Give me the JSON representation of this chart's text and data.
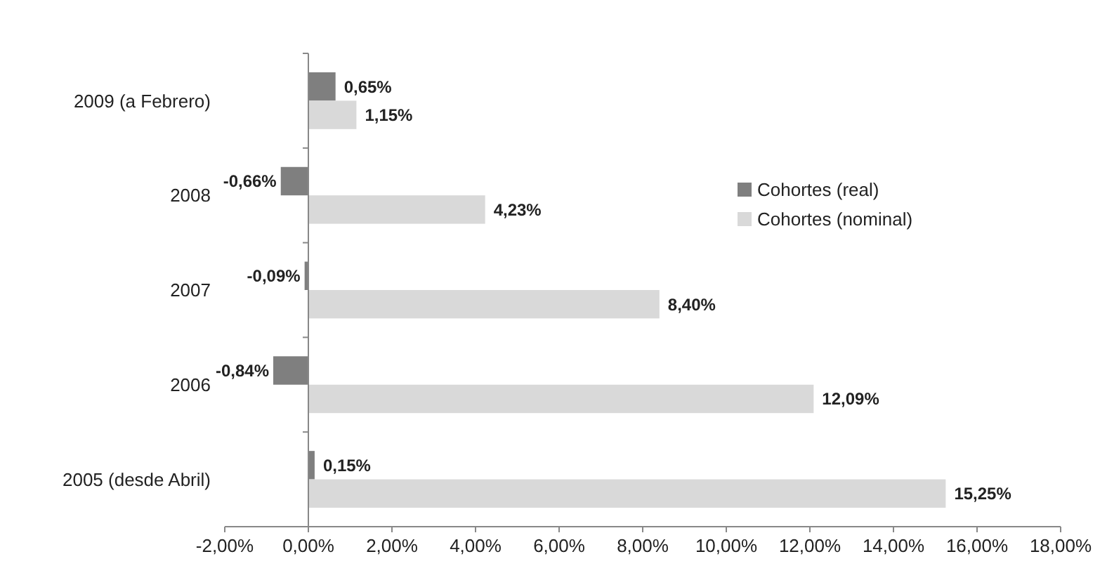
{
  "chart_data": {
    "type": "bar",
    "orientation": "horizontal",
    "categories": [
      "2009 (a Febrero)",
      "2008",
      "2007",
      "2006",
      "2005 (desde Abril)"
    ],
    "series": [
      {
        "name": "Cohortes (real)",
        "color": "#7f7f7f",
        "values": [
          0.65,
          -0.66,
          -0.09,
          -0.84,
          0.15
        ],
        "value_labels": [
          "0,65%",
          "-0,66%",
          "-0,09%",
          "-0,84%",
          "0,15%"
        ]
      },
      {
        "name": "Cohortes (nominal)",
        "color": "#d9d9d9",
        "values": [
          1.15,
          4.23,
          8.4,
          12.09,
          15.25
        ],
        "value_labels": [
          "1,15%",
          "4,23%",
          "8,40%",
          "12,09%",
          "15,25%"
        ]
      }
    ],
    "xlim": [
      -2,
      18
    ],
    "xticks": [
      {
        "value": -2,
        "label": "-2,00%"
      },
      {
        "value": 0,
        "label": "0,00%"
      },
      {
        "value": 2,
        "label": "2,00%"
      },
      {
        "value": 4,
        "label": "4,00%"
      },
      {
        "value": 6,
        "label": "6,00%"
      },
      {
        "value": 8,
        "label": "8,00%"
      },
      {
        "value": 10,
        "label": "10,00%"
      },
      {
        "value": 12,
        "label": "12,00%"
      },
      {
        "value": 14,
        "label": "14,00%"
      },
      {
        "value": 16,
        "label": "16,00%"
      },
      {
        "value": 18,
        "label": "18,00%"
      }
    ],
    "legend": "right"
  }
}
